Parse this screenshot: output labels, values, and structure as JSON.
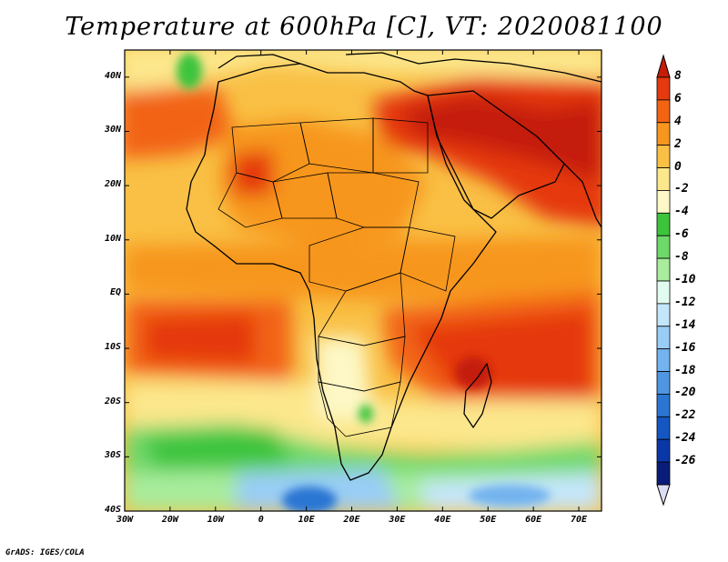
{
  "title": "Temperature at 600hPa [C], VT: 2020081100",
  "credit": "GrADS: IGES/COLA",
  "map": {
    "lon_range": [
      -30,
      75
    ],
    "lat_range": [
      -40,
      45
    ],
    "lat_ticks": [
      {
        "value": 40,
        "label": "40N"
      },
      {
        "value": 30,
        "label": "30N"
      },
      {
        "value": 20,
        "label": "20N"
      },
      {
        "value": 10,
        "label": "10N"
      },
      {
        "value": 0,
        "label": "EQ"
      },
      {
        "value": -10,
        "label": "10S"
      },
      {
        "value": -20,
        "label": "20S"
      },
      {
        "value": -30,
        "label": "30S"
      },
      {
        "value": -40,
        "label": "40S"
      }
    ],
    "lon_ticks": [
      {
        "value": -30,
        "label": "30W"
      },
      {
        "value": -20,
        "label": "20W"
      },
      {
        "value": -10,
        "label": "10W"
      },
      {
        "value": 0,
        "label": "0"
      },
      {
        "value": 10,
        "label": "10E"
      },
      {
        "value": 20,
        "label": "20E"
      },
      {
        "value": 30,
        "label": "30E"
      },
      {
        "value": 40,
        "label": "40E"
      },
      {
        "value": 50,
        "label": "50E"
      },
      {
        "value": 60,
        "label": "60E"
      },
      {
        "value": 70,
        "label": "70E"
      }
    ]
  },
  "colorbar": {
    "labels": [
      "8",
      "6",
      "4",
      "2",
      "0",
      "-2",
      "-4",
      "-6",
      "-8",
      "-10",
      "-12",
      "-14",
      "-16",
      "-18",
      "-20",
      "-22",
      "-24",
      "-26"
    ],
    "colors": [
      "#c41e0a",
      "#e5390f",
      "#f26414",
      "#f7961e",
      "#f9c045",
      "#fce78c",
      "#fdf8c6",
      "#3cc43c",
      "#6fd86a",
      "#a8ec9c",
      "#e2fbf0",
      "#c4e6fb",
      "#99cdf6",
      "#73b3ee",
      "#4f96e2",
      "#2c76d3",
      "#1456c2",
      "#0a37a8",
      "#0a1c7a",
      "#dcdcf4"
    ]
  }
}
